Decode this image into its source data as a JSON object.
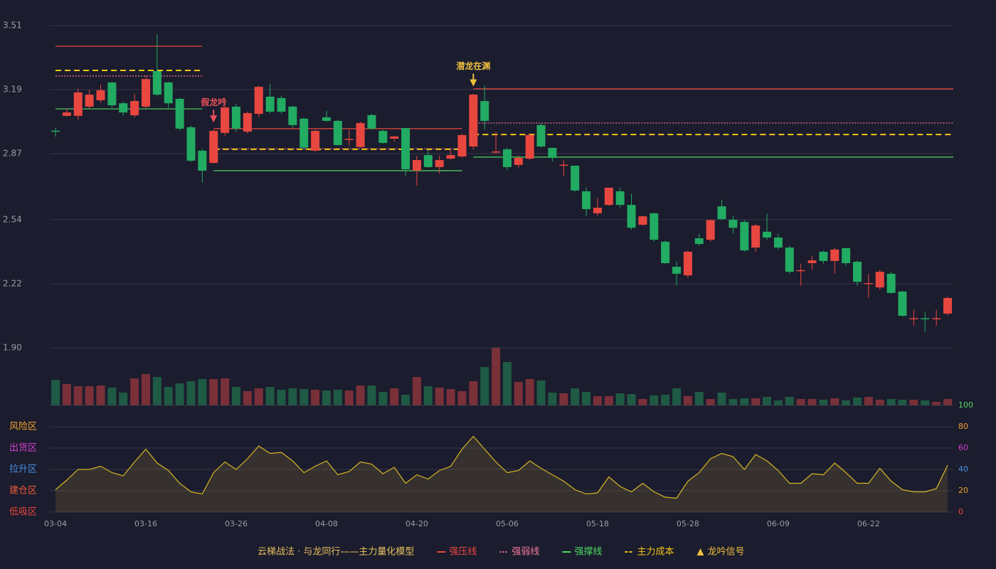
{
  "chart_data": {
    "type": "candlestick",
    "categories": [
      "03-04",
      null,
      null,
      null,
      null,
      null,
      null,
      null,
      "03-16",
      null,
      null,
      null,
      null,
      null,
      null,
      null,
      "03-26",
      null,
      null,
      null,
      null,
      null,
      null,
      null,
      "04-08",
      null,
      null,
      null,
      null,
      null,
      null,
      null,
      "04-20",
      null,
      null,
      null,
      null,
      null,
      null,
      null,
      "05-06",
      null,
      null,
      null,
      null,
      null,
      null,
      null,
      "05-18",
      null,
      null,
      null,
      null,
      null,
      null,
      null,
      "05-28",
      null,
      null,
      null,
      null,
      null,
      null,
      null,
      "06-09",
      null,
      null,
      null,
      null,
      null,
      null,
      null,
      "06-22",
      null,
      null,
      null,
      null,
      null,
      null,
      null
    ],
    "open": [
      2.985,
      3.059,
      3.059,
      3.105,
      3.137,
      3.226,
      3.122,
      3.062,
      3.105,
      3.283,
      3.226,
      3.144,
      3.002,
      2.885,
      2.824,
      2.974,
      3.105,
      2.98,
      3.069,
      3.155,
      3.148,
      3.105,
      3.045,
      2.885,
      3.052,
      3.034,
      2.94,
      2.903,
      3.063,
      2.984,
      2.945,
      2.998,
      2.785,
      2.863,
      2.803,
      2.845,
      2.856,
      2.906,
      3.133,
      2.877,
      2.892,
      2.814,
      2.845,
      3.013,
      2.899,
      2.81,
      2.81,
      2.682,
      2.572,
      2.614,
      2.682,
      2.614,
      2.515,
      2.572,
      2.43,
      2.305,
      2.262,
      2.447,
      2.44,
      2.607,
      2.54,
      2.529,
      2.401,
      2.48,
      2.451,
      2.401,
      2.285,
      2.323,
      2.38,
      2.334,
      2.398,
      2.33,
      2.22,
      2.202,
      2.27,
      2.181,
      2.045,
      2.048,
      2.045,
      2.071
    ],
    "high": [
      3.0,
      3.095,
      3.195,
      3.19,
      3.215,
      3.23,
      3.13,
      3.17,
      3.26,
      3.467,
      3.23,
      3.15,
      3.01,
      2.895,
      2.99,
      3.15,
      3.12,
      3.08,
      3.21,
      3.22,
      3.16,
      3.11,
      3.05,
      2.99,
      3.085,
      3.04,
      2.99,
      3.03,
      3.07,
      2.99,
      2.96,
      3.0,
      2.86,
      2.89,
      2.86,
      2.89,
      2.97,
      3.17,
      3.21,
      2.98,
      2.9,
      2.86,
      2.97,
      3.02,
      2.9,
      2.84,
      2.81,
      2.7,
      2.65,
      2.7,
      2.7,
      2.67,
      2.56,
      2.575,
      2.435,
      2.33,
      2.385,
      2.47,
      2.54,
      2.64,
      2.56,
      2.54,
      2.52,
      2.57,
      2.47,
      2.41,
      2.32,
      2.36,
      2.385,
      2.4,
      2.4,
      2.335,
      2.27,
      2.29,
      2.28,
      2.185,
      2.09,
      2.08,
      2.09,
      2.155
    ],
    "low": [
      2.955,
      3.055,
      3.04,
      3.095,
      3.125,
      3.1,
      3.06,
      3.05,
      3.095,
      3.155,
      3.1,
      2.985,
      2.83,
      2.725,
      2.82,
      2.96,
      2.98,
      2.97,
      3.05,
      3.07,
      3.07,
      3.0,
      2.89,
      2.88,
      3.03,
      2.91,
      2.91,
      2.9,
      2.99,
      2.92,
      2.93,
      2.76,
      2.71,
      2.8,
      2.77,
      2.84,
      2.85,
      2.89,
      2.99,
      2.87,
      2.79,
      2.8,
      2.84,
      2.9,
      2.83,
      2.76,
      2.68,
      2.56,
      2.56,
      2.61,
      2.6,
      2.49,
      2.51,
      2.43,
      2.32,
      2.21,
      2.25,
      2.41,
      2.43,
      2.54,
      2.47,
      2.38,
      2.38,
      2.44,
      2.39,
      2.27,
      2.21,
      2.29,
      2.32,
      2.27,
      2.31,
      2.21,
      2.15,
      2.19,
      2.17,
      2.055,
      2.01,
      1.98,
      2.01,
      2.06
    ],
    "close": [
      2.98,
      3.076,
      3.176,
      3.165,
      3.187,
      3.112,
      3.076,
      3.133,
      3.243,
      3.165,
      3.122,
      2.995,
      2.835,
      2.785,
      2.984,
      3.101,
      2.995,
      3.073,
      3.204,
      3.08,
      3.08,
      3.013,
      2.9,
      2.984,
      3.034,
      2.913,
      2.944,
      3.023,
      2.995,
      2.924,
      2.956,
      2.792,
      2.838,
      2.803,
      2.838,
      2.863,
      2.963,
      3.165,
      3.034,
      2.881,
      2.803,
      2.849,
      2.963,
      2.906,
      2.849,
      2.815,
      2.686,
      2.593,
      2.6,
      2.7,
      2.614,
      2.5,
      2.557,
      2.44,
      2.323,
      2.27,
      2.38,
      2.419,
      2.538,
      2.543,
      2.5,
      2.387,
      2.511,
      2.451,
      2.401,
      2.28,
      2.288,
      2.337,
      2.334,
      2.391,
      2.323,
      2.23,
      2.223,
      2.28,
      2.174,
      2.06,
      2.048,
      2.045,
      2.048,
      2.149
    ],
    "up_color": "#e8473f",
    "down_color": "#22ab62",
    "ylim": [
      1.9,
      3.51
    ],
    "yticks": [
      3.51,
      3.19,
      2.87,
      2.54,
      2.22,
      {
        "value": 1.9,
        "label": "1.90"
      }
    ],
    "grid": true,
    "levels": [
      {
        "name": "强压线",
        "color": "#e8473f",
        "style": "solid",
        "segments": [
          {
            "range": [
              0,
              13
            ],
            "value": 3.407
          },
          {
            "range": [
              14,
              36
            ],
            "value": 2.995
          },
          {
            "range": [
              37,
              79
            ],
            "value": 3.194
          }
        ]
      },
      {
        "name": "强弱线",
        "color": "#f07a9a",
        "style": "dotted",
        "segments": [
          {
            "range": [
              0,
              13
            ],
            "value": 3.258
          },
          {
            "range": [
              14,
              36
            ],
            "value": 2.895
          },
          {
            "range": [
              37,
              79
            ],
            "value": 3.023
          }
        ]
      },
      {
        "name": "强撑线",
        "color": "#4cd964",
        "style": "solid",
        "segments": [
          {
            "range": [
              0,
              13
            ],
            "value": 3.094
          },
          {
            "range": [
              14,
              36
            ],
            "value": 2.785
          },
          {
            "range": [
              37,
              79
            ],
            "value": 2.853
          }
        ]
      },
      {
        "name": "主力成本",
        "color": "#f5c518",
        "style": "dashed",
        "segments": [
          {
            "range": [
              0,
              13
            ],
            "value": 3.286
          },
          {
            "range": [
              14,
              36
            ],
            "value": 2.892
          },
          {
            "range": [
              37,
              79
            ],
            "value": 2.966
          }
        ]
      }
    ],
    "signals": [
      {
        "index": 14,
        "label": "假龙吟",
        "color": "#e8505a"
      },
      {
        "index": 37,
        "label": "潜龙在渊",
        "color": "#f0c040"
      }
    ],
    "signal_legend": {
      "name": "龙吟信号",
      "color": "#f0c040"
    },
    "legend_title": "云梯战法 · 与龙同行——主力量化模型",
    "volume": {
      "type": "bar",
      "values": [
        36,
        30,
        27,
        27,
        28,
        25,
        18,
        38,
        44,
        40,
        26,
        31,
        34,
        37,
        37,
        38,
        26,
        20,
        24,
        26,
        22,
        24,
        23,
        22,
        21,
        22,
        21,
        28,
        28,
        19,
        24,
        15,
        40,
        27,
        25,
        23,
        20,
        34,
        54,
        81,
        61,
        33,
        37,
        35,
        18,
        17,
        24,
        19,
        13,
        13,
        17,
        16,
        9,
        14,
        15,
        24,
        13,
        19,
        9,
        18,
        9,
        10,
        10,
        12,
        7,
        12,
        9,
        9,
        8,
        10,
        7,
        11,
        12,
        8,
        9,
        8,
        8,
        7,
        5,
        9
      ]
    },
    "indicator": {
      "type": "area",
      "color": "#d8b526",
      "values": [
        21,
        30,
        40,
        40,
        43,
        37,
        34,
        47,
        59,
        46,
        39,
        27,
        19,
        17,
        37,
        47,
        40,
        50,
        62,
        55,
        56,
        48,
        37,
        43,
        48,
        35,
        38,
        47,
        45,
        36,
        42,
        27,
        35,
        31,
        39,
        43,
        59,
        71,
        59,
        47,
        37,
        39,
        48,
        41,
        35,
        29,
        21,
        17,
        18,
        33,
        24,
        19,
        27,
        19,
        14,
        13,
        29,
        37,
        50,
        55,
        52,
        40,
        54,
        48,
        39,
        27,
        27,
        36,
        35,
        46,
        37,
        27,
        27,
        41,
        29,
        21,
        19,
        19,
        22,
        44
      ],
      "ylim": [
        0,
        100
      ],
      "yticks": [
        0,
        20,
        40,
        60,
        80,
        100
      ],
      "ytick_colors": [
        "#e8473f",
        "#f0a030",
        "#4a90e2",
        "#d040d0",
        "#f0a030",
        "#4cd964"
      ],
      "zones": [
        {
          "label": "风险区",
          "value": 80,
          "color": "#f0a030"
        },
        {
          "label": "出货区",
          "value": 60,
          "color": "#d040d0"
        },
        {
          "label": "拉升区",
          "value": 40,
          "color": "#4a90e2"
        },
        {
          "label": "建仓区",
          "value": 20,
          "color": "#f05a3a"
        },
        {
          "label": "低吸区",
          "value": 0,
          "color": "#e8473f"
        }
      ]
    }
  }
}
